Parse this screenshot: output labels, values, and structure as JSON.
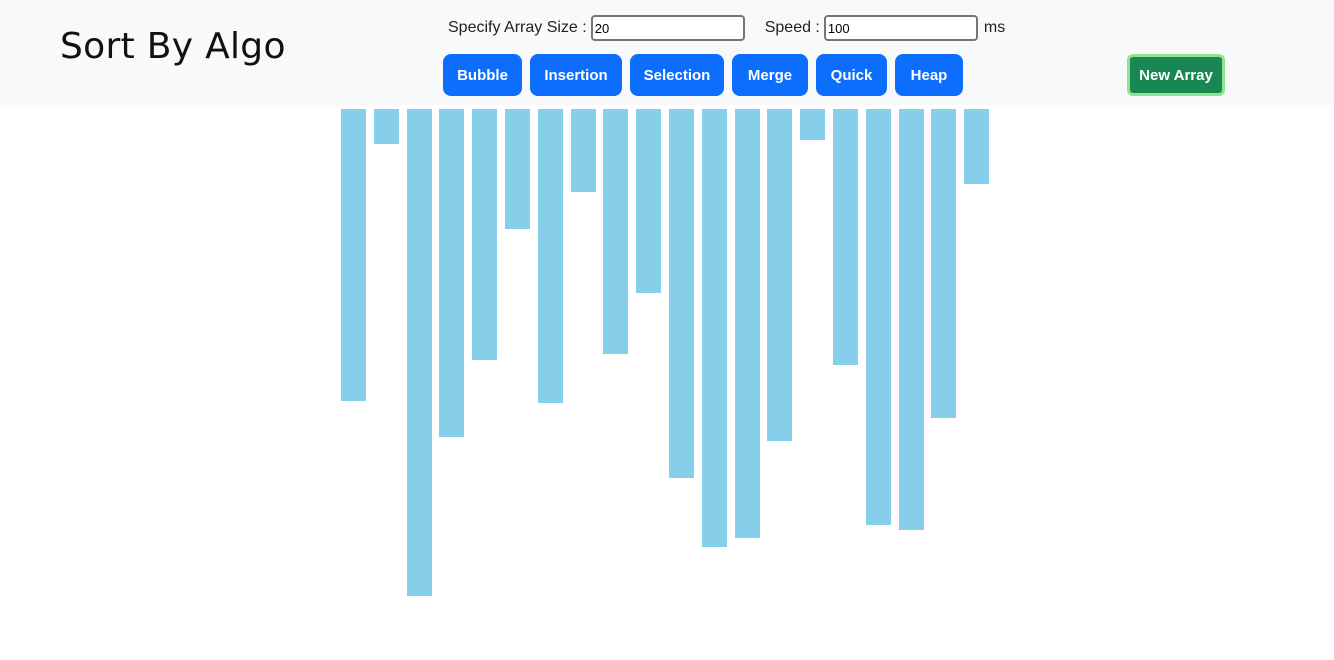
{
  "brand": "Sort By Algo",
  "controls": {
    "size_label": "Specify Array Size :",
    "size_value": "20",
    "speed_label": "Speed :",
    "speed_value": "100",
    "speed_unit": "ms"
  },
  "buttons": {
    "bubble": "Bubble",
    "insertion": "Insertion",
    "selection": "Selection",
    "merge": "Merge",
    "quick": "Quick",
    "heap": "Heap",
    "new_array": "New Array"
  },
  "colors": {
    "bar": "#87ceeb",
    "primary": "#0d6efd",
    "success": "#198754"
  },
  "array": {
    "values": [
      292,
      35,
      487,
      328,
      251,
      120,
      294,
      83,
      245,
      184,
      369,
      438,
      429,
      332,
      31,
      256,
      416,
      421,
      309,
      75
    ]
  }
}
